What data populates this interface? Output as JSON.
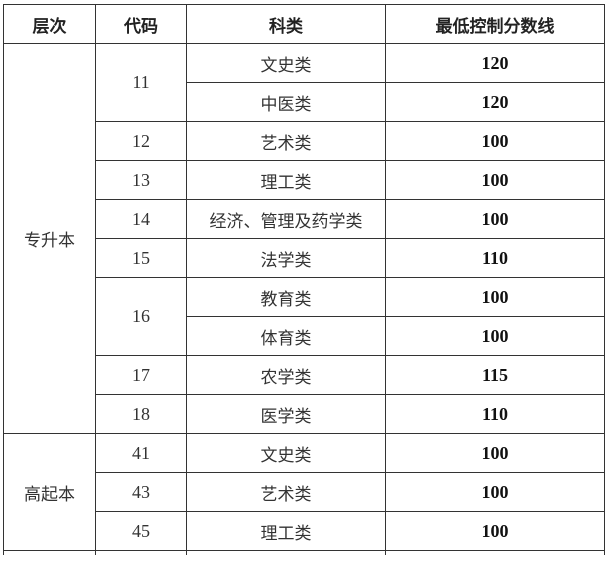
{
  "headers": [
    "层次",
    "代码",
    "科类",
    "最低控制分数线"
  ],
  "groups": [
    {
      "level": "专升本",
      "codes": [
        {
          "code": "11",
          "rows": [
            {
              "subject": "文史类",
              "score": "120"
            },
            {
              "subject": "中医类",
              "score": "120"
            }
          ]
        },
        {
          "code": "12",
          "rows": [
            {
              "subject": "艺术类",
              "score": "100"
            }
          ]
        },
        {
          "code": "13",
          "rows": [
            {
              "subject": "理工类",
              "score": "100"
            }
          ]
        },
        {
          "code": "14",
          "rows": [
            {
              "subject": "经济、管理及药学类",
              "score": "100"
            }
          ]
        },
        {
          "code": "15",
          "rows": [
            {
              "subject": "法学类",
              "score": "110"
            }
          ]
        },
        {
          "code": "16",
          "rows": [
            {
              "subject": "教育类",
              "score": "100"
            },
            {
              "subject": "体育类",
              "score": "100"
            }
          ]
        },
        {
          "code": "17",
          "rows": [
            {
              "subject": "农学类",
              "score": "115"
            }
          ]
        },
        {
          "code": "18",
          "rows": [
            {
              "subject": "医学类",
              "score": "110"
            }
          ]
        }
      ]
    },
    {
      "level": "高起本",
      "codes": [
        {
          "code": "41",
          "rows": [
            {
              "subject": "文史类",
              "score": "100"
            }
          ]
        },
        {
          "code": "43",
          "rows": [
            {
              "subject": "艺术类",
              "score": "100"
            }
          ]
        },
        {
          "code": "45",
          "rows": [
            {
              "subject": "理工类",
              "score": "100"
            }
          ]
        }
      ]
    }
  ]
}
